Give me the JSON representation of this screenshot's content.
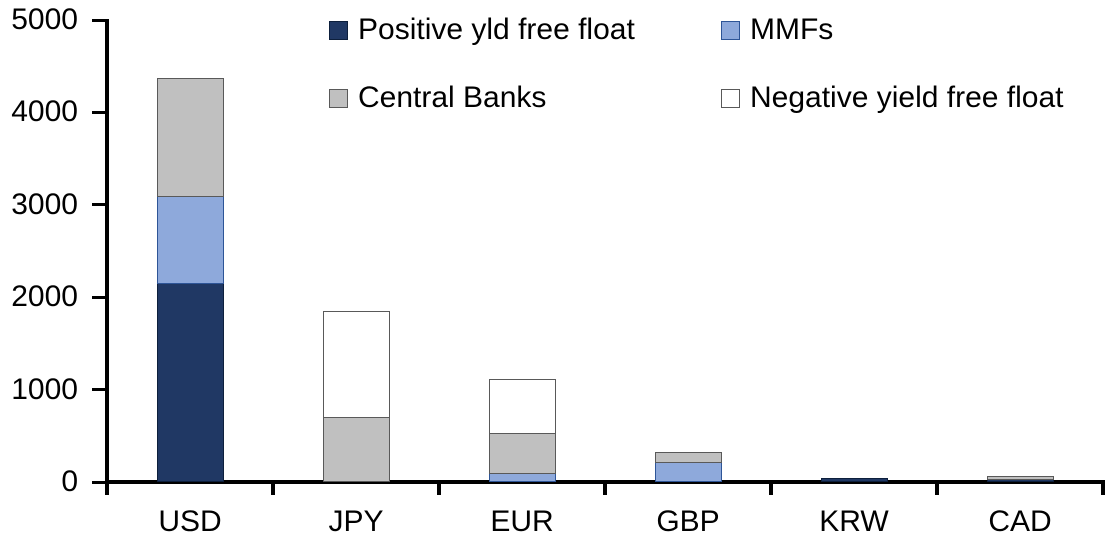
{
  "chart_data": {
    "type": "bar",
    "stacked": true,
    "title": "",
    "categories": [
      "USD",
      "JPY",
      "EUR",
      "GBP",
      "KRW",
      "CAD"
    ],
    "series": [
      {
        "name": "Positive yld free float",
        "color": "#203864",
        "border_color": "#0D1F3C",
        "values": [
          2160,
          0,
          0,
          0,
          45,
          40
        ]
      },
      {
        "name": "MMFs",
        "color": "#8EA9DB",
        "border_color": "#2E5597",
        "values": [
          950,
          0,
          110,
          230,
          0,
          0
        ]
      },
      {
        "name": "Central Banks",
        "color": "#C0C0C0",
        "border_color": "#595959",
        "values": [
          1260,
          710,
          430,
          100,
          0,
          25
        ]
      },
      {
        "name": "Negative yield free float",
        "color": "#FFFFFF",
        "border_color": "#595959",
        "values": [
          0,
          1140,
          575,
          0,
          0,
          0
        ]
      }
    ],
    "totals": [
      4370,
      1850,
      1115,
      330,
      45,
      65
    ],
    "ylim": [
      0,
      5000
    ],
    "ytick_step": 1000,
    "yticks": [
      "0",
      "1000",
      "2000",
      "3000",
      "4000",
      "5000"
    ],
    "grid": false,
    "legend_position": "top, two rows of two",
    "axis_color": "#000000",
    "text_color": "#000000",
    "background_color": "#FFFFFF"
  }
}
